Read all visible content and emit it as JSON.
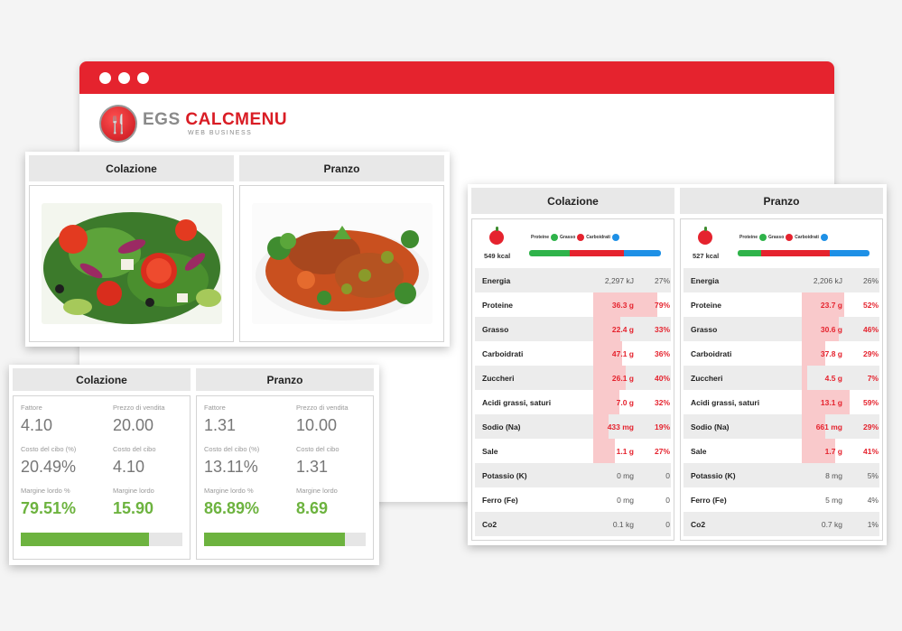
{
  "logo": {
    "main_left": "EGS",
    "main_right": "CALCMENU",
    "sub": "WEB BUSINESS"
  },
  "columns": {
    "breakfast": "Colazione",
    "lunch": "Pranzo"
  },
  "price": {
    "labels": {
      "factor": "Fattore",
      "sale_price": "Prezzo di vendita",
      "food_cost_pct": "Costo del cibo (%)",
      "food_cost": "Costo del cibo",
      "gross_margin_pct": "Margine lordo %",
      "gross_margin": "Margine lordo"
    },
    "breakfast": {
      "factor": "4.10",
      "sale_price": "20.00",
      "food_cost_pct": "20.49%",
      "food_cost": "4.10",
      "gross_margin_pct": "79.51%",
      "gross_margin": "15.90",
      "margin_fraction": 0.795
    },
    "lunch": {
      "factor": "1.31",
      "sale_price": "10.00",
      "food_cost_pct": "13.11%",
      "food_cost": "1.31",
      "gross_margin_pct": "86.89%",
      "gross_margin": "8.69",
      "margin_fraction": 0.869
    }
  },
  "nutrition": {
    "legend": {
      "protein": "Proteine",
      "fat": "Grasso",
      "carbs": "Carboidrati"
    },
    "colors": {
      "protein": "#2fb34a",
      "fat": "#e5232e",
      "carbs": "#1e90e6",
      "highlight": "#f9c9cb"
    },
    "breakfast": {
      "kcal": "549 kcal",
      "macro_split": [
        0.31,
        0.41,
        0.28
      ],
      "rows": [
        {
          "name": "Energia",
          "amount": "2,297 kJ",
          "pct": "27%",
          "level": 0.27,
          "hl": false
        },
        {
          "name": "Proteine",
          "amount": "36.3 g",
          "pct": "79%",
          "level": 0.79,
          "hl": true
        },
        {
          "name": "Grasso",
          "amount": "22.4 g",
          "pct": "33%",
          "level": 0.33,
          "hl": true
        },
        {
          "name": "Carboidrati",
          "amount": "47.1 g",
          "pct": "36%",
          "level": 0.36,
          "hl": true
        },
        {
          "name": "Zuccheri",
          "amount": "26.1 g",
          "pct": "40%",
          "level": 0.4,
          "hl": true
        },
        {
          "name": "Acidi grassi, saturi",
          "amount": "7.0 g",
          "pct": "32%",
          "level": 0.32,
          "hl": true
        },
        {
          "name": "Sodio (Na)",
          "amount": "433 mg",
          "pct": "19%",
          "level": 0.19,
          "hl": true
        },
        {
          "name": "Sale",
          "amount": "1.1 g",
          "pct": "27%",
          "level": 0.27,
          "hl": true
        },
        {
          "name": "Potassio (K)",
          "amount": "0 mg",
          "pct": "0",
          "level": 0,
          "hl": false
        },
        {
          "name": "Ferro (Fe)",
          "amount": "0 mg",
          "pct": "0",
          "level": 0,
          "hl": false
        },
        {
          "name": "Co2",
          "amount": "0.1 kg",
          "pct": "0",
          "level": 0,
          "hl": false
        }
      ]
    },
    "lunch": {
      "kcal": "527 kcal",
      "macro_split": [
        0.18,
        0.52,
        0.3
      ],
      "rows": [
        {
          "name": "Energia",
          "amount": "2,206 kJ",
          "pct": "26%",
          "level": 0.26,
          "hl": false
        },
        {
          "name": "Proteine",
          "amount": "23.7 g",
          "pct": "52%",
          "level": 0.52,
          "hl": true
        },
        {
          "name": "Grasso",
          "amount": "30.6 g",
          "pct": "46%",
          "level": 0.46,
          "hl": true
        },
        {
          "name": "Carboidrati",
          "amount": "37.8 g",
          "pct": "29%",
          "level": 0.29,
          "hl": true
        },
        {
          "name": "Zuccheri",
          "amount": "4.5 g",
          "pct": "7%",
          "level": 0.07,
          "hl": true
        },
        {
          "name": "Acidi grassi, saturi",
          "amount": "13.1 g",
          "pct": "59%",
          "level": 0.59,
          "hl": true
        },
        {
          "name": "Sodio (Na)",
          "amount": "661 mg",
          "pct": "29%",
          "level": 0.29,
          "hl": true
        },
        {
          "name": "Sale",
          "amount": "1.7 g",
          "pct": "41%",
          "level": 0.41,
          "hl": true
        },
        {
          "name": "Potassio (K)",
          "amount": "8 mg",
          "pct": "5%",
          "level": 0.05,
          "hl": false
        },
        {
          "name": "Ferro (Fe)",
          "amount": "5 mg",
          "pct": "4%",
          "level": 0.04,
          "hl": false
        },
        {
          "name": "Co2",
          "amount": "0.7 kg",
          "pct": "1%",
          "level": 0.01,
          "hl": false
        }
      ]
    }
  }
}
